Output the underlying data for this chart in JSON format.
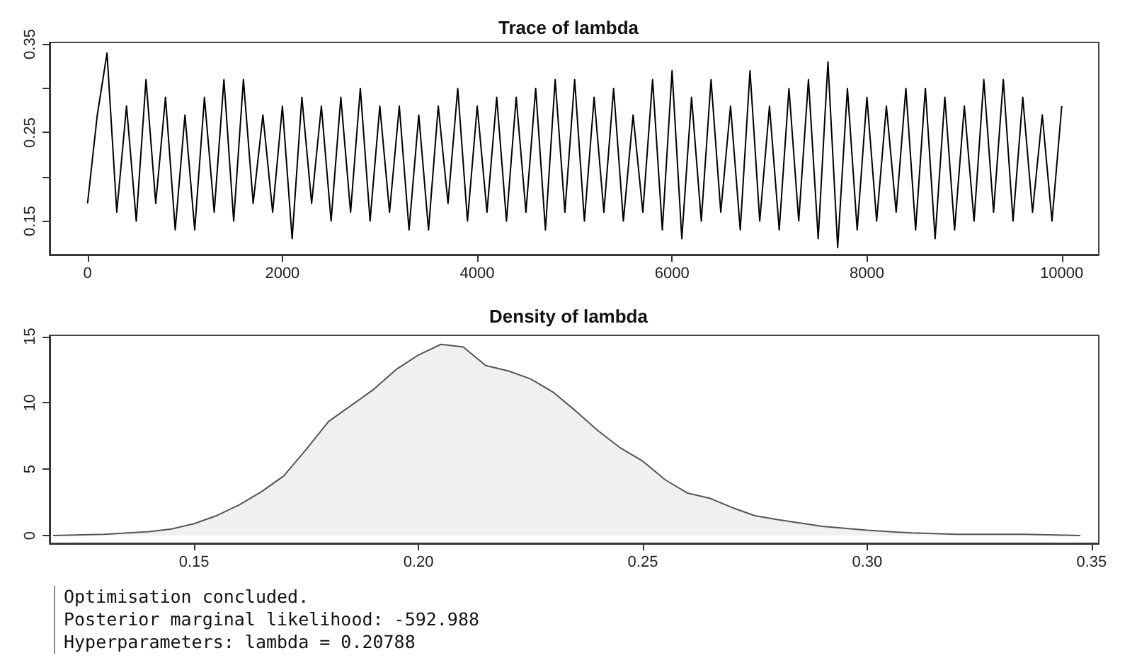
{
  "chart_data": [
    {
      "type": "line",
      "title": "Trace of lambda",
      "xlim": [
        -390,
        10380
      ],
      "xticks": [
        0,
        2000,
        4000,
        6000,
        8000,
        10000
      ],
      "ylim": [
        0.112,
        0.352
      ],
      "yticks": [
        0.15,
        {
          "value": 0.2,
          "label": null
        },
        0.25,
        {
          "value": 0.3,
          "label": null
        },
        0.35
      ],
      "marker": "none",
      "x": [
        0,
        100,
        200,
        300,
        400,
        500,
        600,
        700,
        800,
        900,
        1000,
        1100,
        1200,
        1300,
        1400,
        1500,
        1600,
        1700,
        1800,
        1900,
        2000,
        2100,
        2200,
        2300,
        2400,
        2500,
        2600,
        2700,
        2800,
        2900,
        3000,
        3100,
        3200,
        3300,
        3400,
        3500,
        3600,
        3700,
        3800,
        3900,
        4000,
        4100,
        4200,
        4300,
        4400,
        4500,
        4600,
        4700,
        4800,
        4900,
        5000,
        5100,
        5200,
        5300,
        5400,
        5500,
        5600,
        5700,
        5800,
        5900,
        6000,
        6100,
        6200,
        6300,
        6400,
        6500,
        6600,
        6700,
        6800,
        6900,
        7000,
        7100,
        7200,
        7300,
        7400,
        7500,
        7600,
        7700,
        7800,
        7900,
        8000,
        8100,
        8200,
        8300,
        8400,
        8500,
        8600,
        8700,
        8800,
        8900,
        9000,
        9100,
        9200,
        9300,
        9400,
        9500,
        9600,
        9700,
        9800,
        9900,
        10000
      ],
      "series": [
        {
          "color": "#000000",
          "values": [
            0.17,
            0.27,
            0.34,
            0.16,
            0.28,
            0.15,
            0.31,
            0.17,
            0.29,
            0.14,
            0.27,
            0.14,
            0.29,
            0.16,
            0.31,
            0.15,
            0.31,
            0.17,
            0.27,
            0.16,
            0.28,
            0.13,
            0.29,
            0.17,
            0.28,
            0.15,
            0.29,
            0.16,
            0.3,
            0.15,
            0.28,
            0.16,
            0.28,
            0.14,
            0.27,
            0.14,
            0.28,
            0.17,
            0.3,
            0.15,
            0.28,
            0.16,
            0.29,
            0.15,
            0.29,
            0.16,
            0.3,
            0.14,
            0.31,
            0.16,
            0.31,
            0.15,
            0.29,
            0.16,
            0.3,
            0.15,
            0.27,
            0.16,
            0.31,
            0.14,
            0.32,
            0.13,
            0.29,
            0.15,
            0.31,
            0.16,
            0.28,
            0.14,
            0.32,
            0.15,
            0.28,
            0.14,
            0.3,
            0.15,
            0.31,
            0.13,
            0.33,
            0.12,
            0.3,
            0.14,
            0.29,
            0.15,
            0.28,
            0.16,
            0.3,
            0.14,
            0.3,
            0.13,
            0.29,
            0.14,
            0.28,
            0.15,
            0.31,
            0.16,
            0.31,
            0.15,
            0.29,
            0.16,
            0.27,
            0.15,
            0.28
          ]
        }
      ]
    },
    {
      "type": "area",
      "title": "Density of lambda",
      "xlim": [
        0.1178,
        0.3516
      ],
      "xticks": [
        0.15,
        {
          "value": 0.2,
          "label": "0.20"
        },
        0.25,
        {
          "value": 0.3,
          "label": "0.30"
        },
        0.35
      ],
      "ylim": [
        -0.58,
        15.08
      ],
      "yticks": [
        0,
        5,
        10,
        15
      ],
      "marker": "none",
      "x": [
        0.1186,
        0.13,
        0.14,
        0.145,
        0.15,
        0.155,
        0.16,
        0.165,
        0.17,
        0.175,
        0.18,
        0.185,
        0.19,
        0.195,
        0.2,
        0.205,
        0.21,
        0.215,
        0.22,
        0.225,
        0.23,
        0.235,
        0.24,
        0.245,
        0.25,
        0.255,
        0.26,
        0.265,
        0.27,
        0.275,
        0.28,
        0.29,
        0.3,
        0.31,
        0.32,
        0.335,
        0.3475
      ],
      "series": [
        {
          "color": "#555555",
          "values": [
            0,
            0.1,
            0.3,
            0.5,
            0.9,
            1.5,
            2.3,
            3.3,
            4.5,
            6.5,
            8.6,
            9.8,
            11.0,
            12.5,
            13.6,
            14.4,
            14.2,
            12.8,
            12.4,
            11.8,
            10.8,
            9.4,
            7.9,
            6.6,
            5.6,
            4.2,
            3.2,
            2.8,
            2.1,
            1.5,
            1.2,
            0.7,
            0.4,
            0.2,
            0.1,
            0.1,
            0
          ]
        }
      ],
      "annotations": [
        "Optimisation concluded.",
        "Posterior marginal likelihood: -592.988",
        "Hyperparameters: lambda = 0.20788"
      ]
    }
  ]
}
